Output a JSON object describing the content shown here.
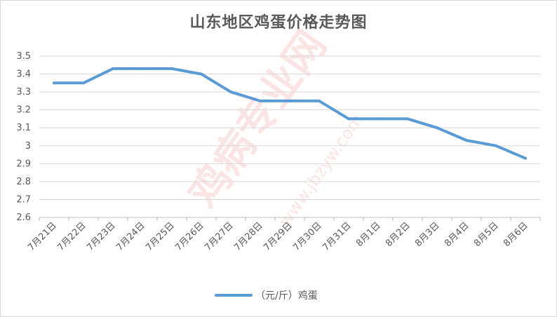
{
  "chart_data": {
    "type": "line",
    "title": "山东地区鸡蛋价格走势图",
    "categories": [
      "7月21日",
      "7月22日",
      "7月23日",
      "7月24日",
      "7月25日",
      "7月26日",
      "7月27日",
      "7月28日",
      "7月29日",
      "7月30日",
      "7月31日",
      "8月1日",
      "8月2日",
      "8月3日",
      "8月4日",
      "8月5日",
      "8月6日"
    ],
    "series": [
      {
        "name": "（元/斤）鸡蛋",
        "values": [
          3.35,
          3.35,
          3.43,
          3.43,
          3.43,
          3.4,
          3.3,
          3.25,
          3.25,
          3.25,
          3.15,
          3.15,
          3.15,
          3.1,
          3.03,
          3.0,
          2.93
        ],
        "color": "#5b9bd5"
      }
    ],
    "ylim": [
      2.6,
      3.5
    ],
    "yticks": [
      "2.6",
      "2.7",
      "2.8",
      "2.9",
      "3",
      "3.1",
      "3.2",
      "3.3",
      "3.4",
      "3.5"
    ],
    "grid": true,
    "legend_position": "bottom",
    "xlabel": "",
    "ylabel": ""
  },
  "watermark": {
    "text_cn": "鸡病专业网",
    "text_url": "www.jbzyw.com",
    "color": "#e53935"
  }
}
